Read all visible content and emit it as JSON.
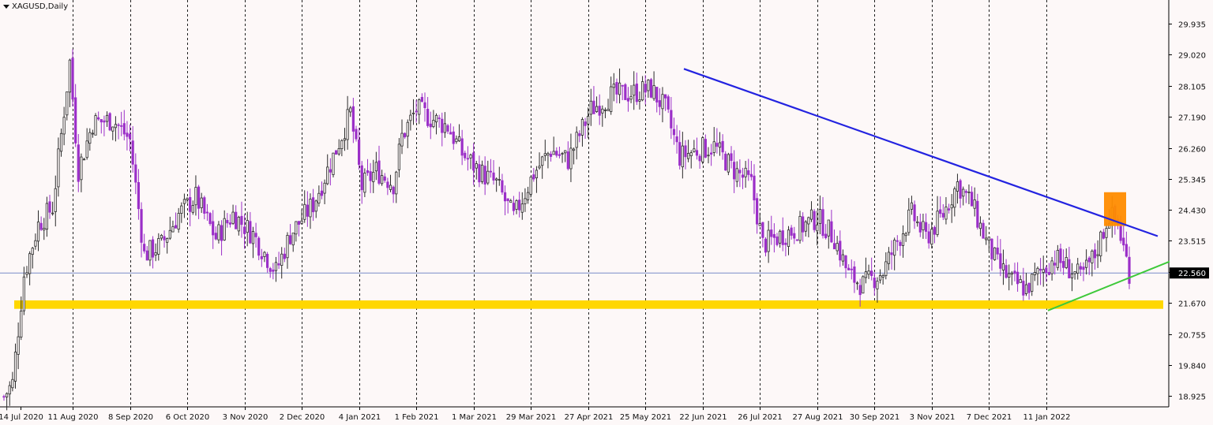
{
  "window": {
    "title": "XAGUSD,Daily"
  },
  "colors": {
    "background": "#fdf8f8",
    "candle_bull": "#2a2a2a",
    "candle_bear": "#9b2fc8",
    "trendline_resistance": "#2323e0",
    "trendline_support": "#3ec93a",
    "support_zone": "#ffd700",
    "highlight_box": "#ff8c00",
    "price_line": "#7a8cc8"
  },
  "chart_data": {
    "type": "candlestick",
    "symbol": "XAGUSD",
    "timeframe": "Daily",
    "y_ticks": [
      "29.935",
      "29.020",
      "28.105",
      "27.190",
      "26.260",
      "25.345",
      "24.430",
      "23.515",
      "22.600",
      "21.670",
      "20.755",
      "19.840",
      "18.925"
    ],
    "ylim": [
      18.6,
      30.45
    ],
    "x_ticks": [
      "14 Jul 2020",
      "11 Aug 2020",
      "8 Sep 2020",
      "6 Oct 2020",
      "3 Nov 2020",
      "2 Dec 2020",
      "4 Jan 2021",
      "1 Feb 2021",
      "1 Mar 2021",
      "29 Mar 2021",
      "27 Apr 2021",
      "25 May 2021",
      "22 Jun 2021",
      "26 Jul 2021",
      "27 Aug 2021",
      "30 Sep 2021",
      "3 Nov 2021",
      "7 Dec 2021",
      "11 Jan 2022"
    ],
    "grid": true,
    "current_price": "22.560",
    "anchors": [
      {
        "d": 0,
        "p": 18.9
      },
      {
        "d": 3,
        "p": 19.3
      },
      {
        "d": 7,
        "p": 22.5
      },
      {
        "d": 12,
        "p": 24.0
      },
      {
        "d": 17,
        "p": 24.5
      },
      {
        "d": 23,
        "p": 28.8
      },
      {
        "d": 26,
        "p": 25.6
      },
      {
        "d": 31,
        "p": 27.0
      },
      {
        "d": 38,
        "p": 27.1
      },
      {
        "d": 44,
        "p": 26.5
      },
      {
        "d": 49,
        "p": 23.1
      },
      {
        "d": 55,
        "p": 23.4
      },
      {
        "d": 61,
        "p": 24.3
      },
      {
        "d": 67,
        "p": 24.8
      },
      {
        "d": 74,
        "p": 23.6
      },
      {
        "d": 80,
        "p": 24.3
      },
      {
        "d": 87,
        "p": 23.7
      },
      {
        "d": 95,
        "p": 22.6
      },
      {
        "d": 100,
        "p": 23.7
      },
      {
        "d": 108,
        "p": 24.6
      },
      {
        "d": 115,
        "p": 26.0
      },
      {
        "d": 121,
        "p": 27.3
      },
      {
        "d": 125,
        "p": 25.1
      },
      {
        "d": 130,
        "p": 25.6
      },
      {
        "d": 136,
        "p": 25.2
      },
      {
        "d": 139,
        "p": 26.6
      },
      {
        "d": 144,
        "p": 27.4
      },
      {
        "d": 150,
        "p": 27.1
      },
      {
        "d": 155,
        "p": 26.9
      },
      {
        "d": 160,
        "p": 26.1
      },
      {
        "d": 167,
        "p": 25.5
      },
      {
        "d": 172,
        "p": 25.2
      },
      {
        "d": 178,
        "p": 24.2
      },
      {
        "d": 185,
        "p": 25.5
      },
      {
        "d": 191,
        "p": 26.2
      },
      {
        "d": 197,
        "p": 25.9
      },
      {
        "d": 205,
        "p": 27.4
      },
      {
        "d": 212,
        "p": 27.8
      },
      {
        "d": 220,
        "p": 27.9
      },
      {
        "d": 226,
        "p": 28.0
      },
      {
        "d": 231,
        "p": 27.4
      },
      {
        "d": 236,
        "p": 26.0
      },
      {
        "d": 242,
        "p": 26.2
      },
      {
        "d": 248,
        "p": 26.3
      },
      {
        "d": 255,
        "p": 25.6
      },
      {
        "d": 261,
        "p": 25.2
      },
      {
        "d": 265,
        "p": 23.4
      },
      {
        "d": 272,
        "p": 23.7
      },
      {
        "d": 278,
        "p": 23.9
      },
      {
        "d": 284,
        "p": 24.2
      },
      {
        "d": 290,
        "p": 23.6
      },
      {
        "d": 295,
        "p": 22.5
      },
      {
        "d": 300,
        "p": 22.2
      },
      {
        "d": 307,
        "p": 22.6
      },
      {
        "d": 312,
        "p": 23.5
      },
      {
        "d": 317,
        "p": 24.3
      },
      {
        "d": 322,
        "p": 23.6
      },
      {
        "d": 328,
        "p": 24.3
      },
      {
        "d": 333,
        "p": 25.2
      },
      {
        "d": 338,
        "p": 24.6
      },
      {
        "d": 343,
        "p": 23.5
      },
      {
        "d": 347,
        "p": 22.8
      },
      {
        "d": 352,
        "p": 22.3
      },
      {
        "d": 357,
        "p": 22.1
      },
      {
        "d": 362,
        "p": 22.6
      },
      {
        "d": 367,
        "p": 23.0
      },
      {
        "d": 372,
        "p": 22.7
      },
      {
        "d": 376,
        "p": 22.4
      },
      {
        "d": 381,
        "p": 23.1
      },
      {
        "d": 386,
        "p": 24.3
      },
      {
        "d": 389,
        "p": 24.0
      },
      {
        "d": 393,
        "p": 22.6
      }
    ]
  }
}
